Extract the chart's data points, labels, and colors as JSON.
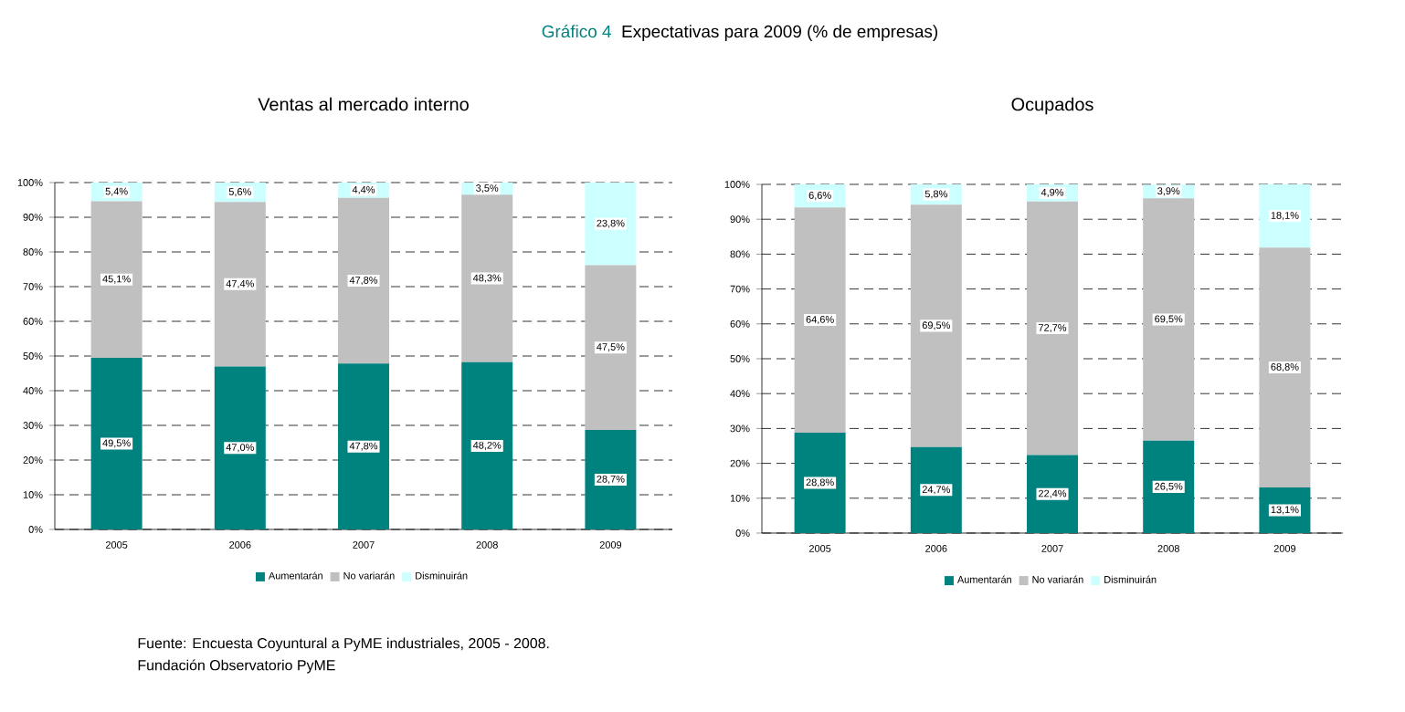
{
  "chart_data": [
    {
      "type": "bar",
      "stacked": true,
      "title": "Ventas al mercado interno",
      "annotations": [
        "Gráfico 4",
        "Expectativas para 2009 (% de empresas)",
        "Fuente: Encuesta Coyuntural a PyME industriales, 2005 - 2008.",
        "Fundación Observatorio PyME"
      ],
      "categories": [
        "2005",
        "2006",
        "2007",
        "2008",
        "2009"
      ],
      "series": [
        {
          "name": "Aumentarán",
          "color": "#00827f",
          "values": [
            49.5,
            47.0,
            47.8,
            48.2,
            28.7
          ],
          "value_labels": [
            "49,5%",
            "47,0%",
            "47,8%",
            "48,2%",
            "28,7%"
          ]
        },
        {
          "name": "No variarán",
          "color": "#c0c0c0",
          "values": [
            45.1,
            47.4,
            47.8,
            48.3,
            47.5
          ],
          "value_labels": [
            "45,1%",
            "47,4%",
            "47,8%",
            "48,3%",
            "47,5%"
          ]
        },
        {
          "name": "Disminuirán",
          "color": "#ccffff",
          "values": [
            5.4,
            5.6,
            4.4,
            3.5,
            23.8
          ],
          "value_labels": [
            "5,4%",
            "5,6%",
            "4,4%",
            "3,5%",
            "23,8%"
          ]
        }
      ],
      "ylim": [
        0,
        100
      ],
      "yticks": [
        {
          "value": 0,
          "label": "0%"
        },
        {
          "value": 10,
          "label": "10%"
        },
        {
          "value": 20,
          "label": "20%"
        },
        {
          "value": 30,
          "label": "30%"
        },
        {
          "value": 40,
          "label": "40%"
        },
        {
          "value": 50,
          "label": "50%"
        },
        {
          "value": 60,
          "label": "60%"
        },
        {
          "value": 70,
          "label": "70%"
        },
        {
          "value": 80,
          "label": "80%"
        },
        {
          "value": 90,
          "label": "90%"
        },
        {
          "value": 100,
          "label": "100%"
        }
      ],
      "grid": "y",
      "legend": "bottom"
    },
    {
      "type": "bar",
      "stacked": true,
      "title": "Ocupados",
      "categories": [
        "2005",
        "2006",
        "2007",
        "2008",
        "2009"
      ],
      "series": [
        {
          "name": "Aumentarán",
          "color": "#00827f",
          "values": [
            28.8,
            24.7,
            22.4,
            26.5,
            13.1
          ],
          "value_labels": [
            "28,8%",
            "24,7%",
            "22,4%",
            "26,5%",
            "13,1%"
          ]
        },
        {
          "name": "No variarán",
          "color": "#c0c0c0",
          "values": [
            64.6,
            69.5,
            72.7,
            69.5,
            68.8
          ],
          "value_labels": [
            "64,6%",
            "69,5%",
            "72,7%",
            "69,5%",
            "68,8%"
          ]
        },
        {
          "name": "Disminuirán",
          "color": "#ccffff",
          "values": [
            6.6,
            5.8,
            4.9,
            3.9,
            18.1
          ],
          "value_labels": [
            "6,6%",
            "5,8%",
            "4,9%",
            "3,9%",
            "18,1%"
          ]
        }
      ],
      "ylim": [
        0,
        100
      ],
      "yticks": [
        {
          "value": 0,
          "label": "0%"
        },
        {
          "value": 10,
          "label": "10%"
        },
        {
          "value": 20,
          "label": "20%"
        },
        {
          "value": 30,
          "label": "30%"
        },
        {
          "value": 40,
          "label": "40%"
        },
        {
          "value": 50,
          "label": "50%"
        },
        {
          "value": 60,
          "label": "60%"
        },
        {
          "value": 70,
          "label": "70%"
        },
        {
          "value": 80,
          "label": "80%"
        },
        {
          "value": 90,
          "label": "90%"
        },
        {
          "value": 100,
          "label": "100%"
        }
      ],
      "grid": "y",
      "legend": "bottom"
    }
  ]
}
